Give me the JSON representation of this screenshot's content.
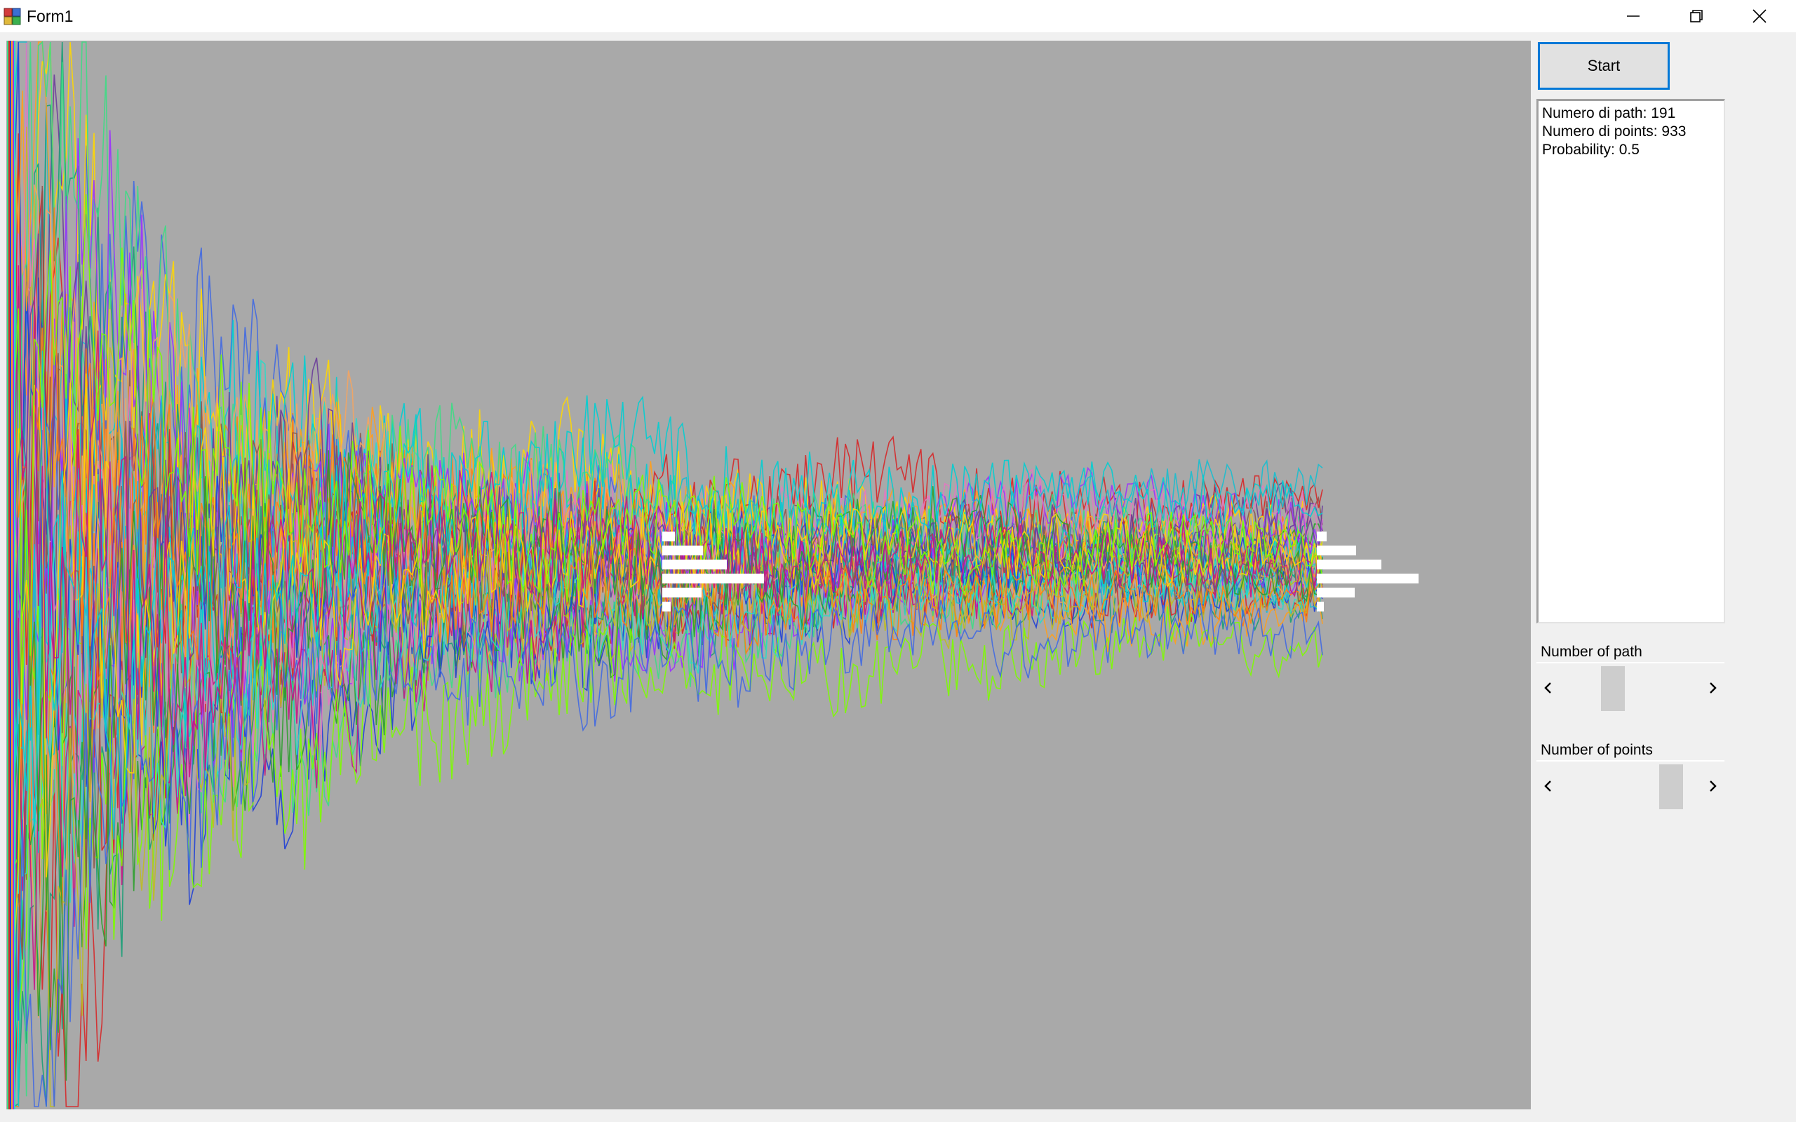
{
  "window": {
    "title": "Form1"
  },
  "toolbar": {
    "start_label": "Start"
  },
  "output": {
    "lines": [
      "Numero di path: 191",
      "Numero di points: 933",
      "Probability: 0.5"
    ]
  },
  "controls": {
    "path_label": "Number of path",
    "points_label": "Number of points",
    "path_slider_fraction": 0.35,
    "points_slider_fraction": 0.85
  },
  "colors": {
    "canvas_bg": "#a9a9a9",
    "accent": "#0078d7",
    "histogram": "#ffffff"
  },
  "icons": {
    "app": "app-icon",
    "minimize": "minimize-icon",
    "maximize": "restore-icon",
    "close": "close-icon",
    "scroll_left": "chevron-left-icon",
    "scroll_right": "chevron-right-icon"
  }
}
